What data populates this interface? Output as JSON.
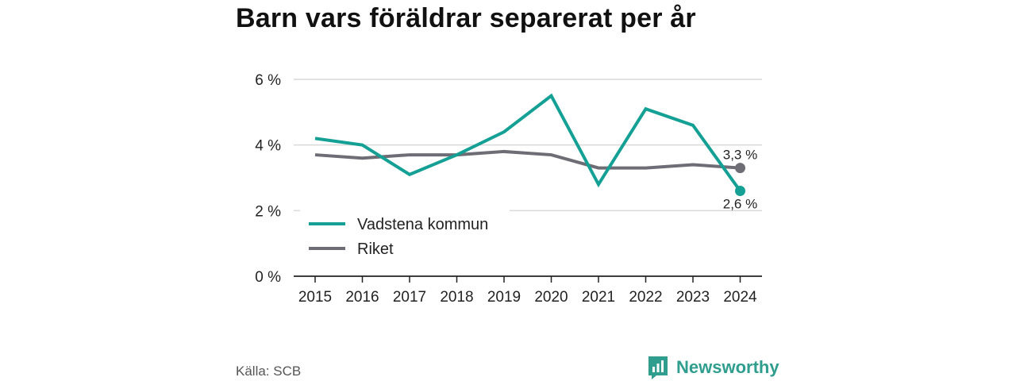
{
  "title": "Barn vars föräldrar separerat per år",
  "source": "Källa: SCB",
  "brand": "Newsworthy",
  "chart_data": {
    "type": "line",
    "categories": [
      "2015",
      "2016",
      "2017",
      "2018",
      "2019",
      "2020",
      "2021",
      "2022",
      "2023",
      "2024"
    ],
    "ylim": [
      0,
      6
    ],
    "yticks": [
      0,
      2,
      4,
      6
    ],
    "ytick_labels": [
      "0 %",
      "2 %",
      "4 %",
      "6 %"
    ],
    "grid": true,
    "legend": "bottom-left",
    "series": [
      {
        "name": "Vadstena kommun",
        "color": "#14a094",
        "values": [
          4.2,
          4.0,
          3.1,
          3.7,
          4.4,
          5.5,
          2.8,
          5.1,
          4.6,
          2.6
        ],
        "end_label": "2,6 %"
      },
      {
        "name": "Riket",
        "color": "#6e6d75",
        "values": [
          3.7,
          3.6,
          3.7,
          3.7,
          3.8,
          3.7,
          3.3,
          3.3,
          3.4,
          3.3
        ],
        "end_label": "3,3 %"
      }
    ]
  }
}
